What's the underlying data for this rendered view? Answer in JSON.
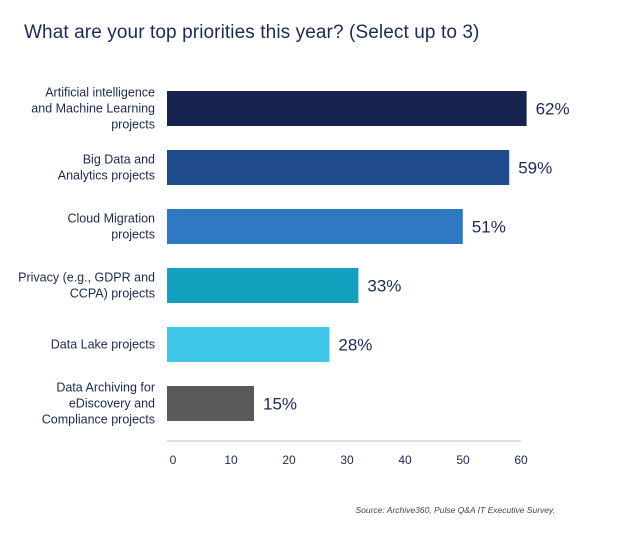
{
  "title": "What are your top priorities this year? (Select up to 3)",
  "source": "Source: Archive360, Pulse Q&A IT Executive Survey.",
  "chart_data": {
    "type": "bar",
    "orientation": "horizontal",
    "categories": [
      [
        "Artificial intelligence",
        "and Machine Learning",
        "projects"
      ],
      [
        "Big Data and",
        "Analytics projects"
      ],
      [
        "Cloud Migration",
        "projects"
      ],
      [
        "Privacy (e.g., GDPR and",
        "CCPA) projects"
      ],
      [
        "Data Lake projects"
      ],
      [
        "Data Archiving for",
        "eDiscovery and",
        "Compliance projects"
      ]
    ],
    "values": [
      62,
      59,
      51,
      33,
      28,
      15
    ],
    "value_labels": [
      "62%",
      "59%",
      "51%",
      "33%",
      "28%",
      "15%"
    ],
    "colors": [
      "#16244f",
      "#1f4a8c",
      "#2f79c3",
      "#13a1bf",
      "#3fc5e8",
      "#595959"
    ],
    "xlim": [
      0,
      60
    ],
    "xticks": [
      0,
      10,
      20,
      30,
      40,
      50,
      60
    ],
    "grid": false
  }
}
